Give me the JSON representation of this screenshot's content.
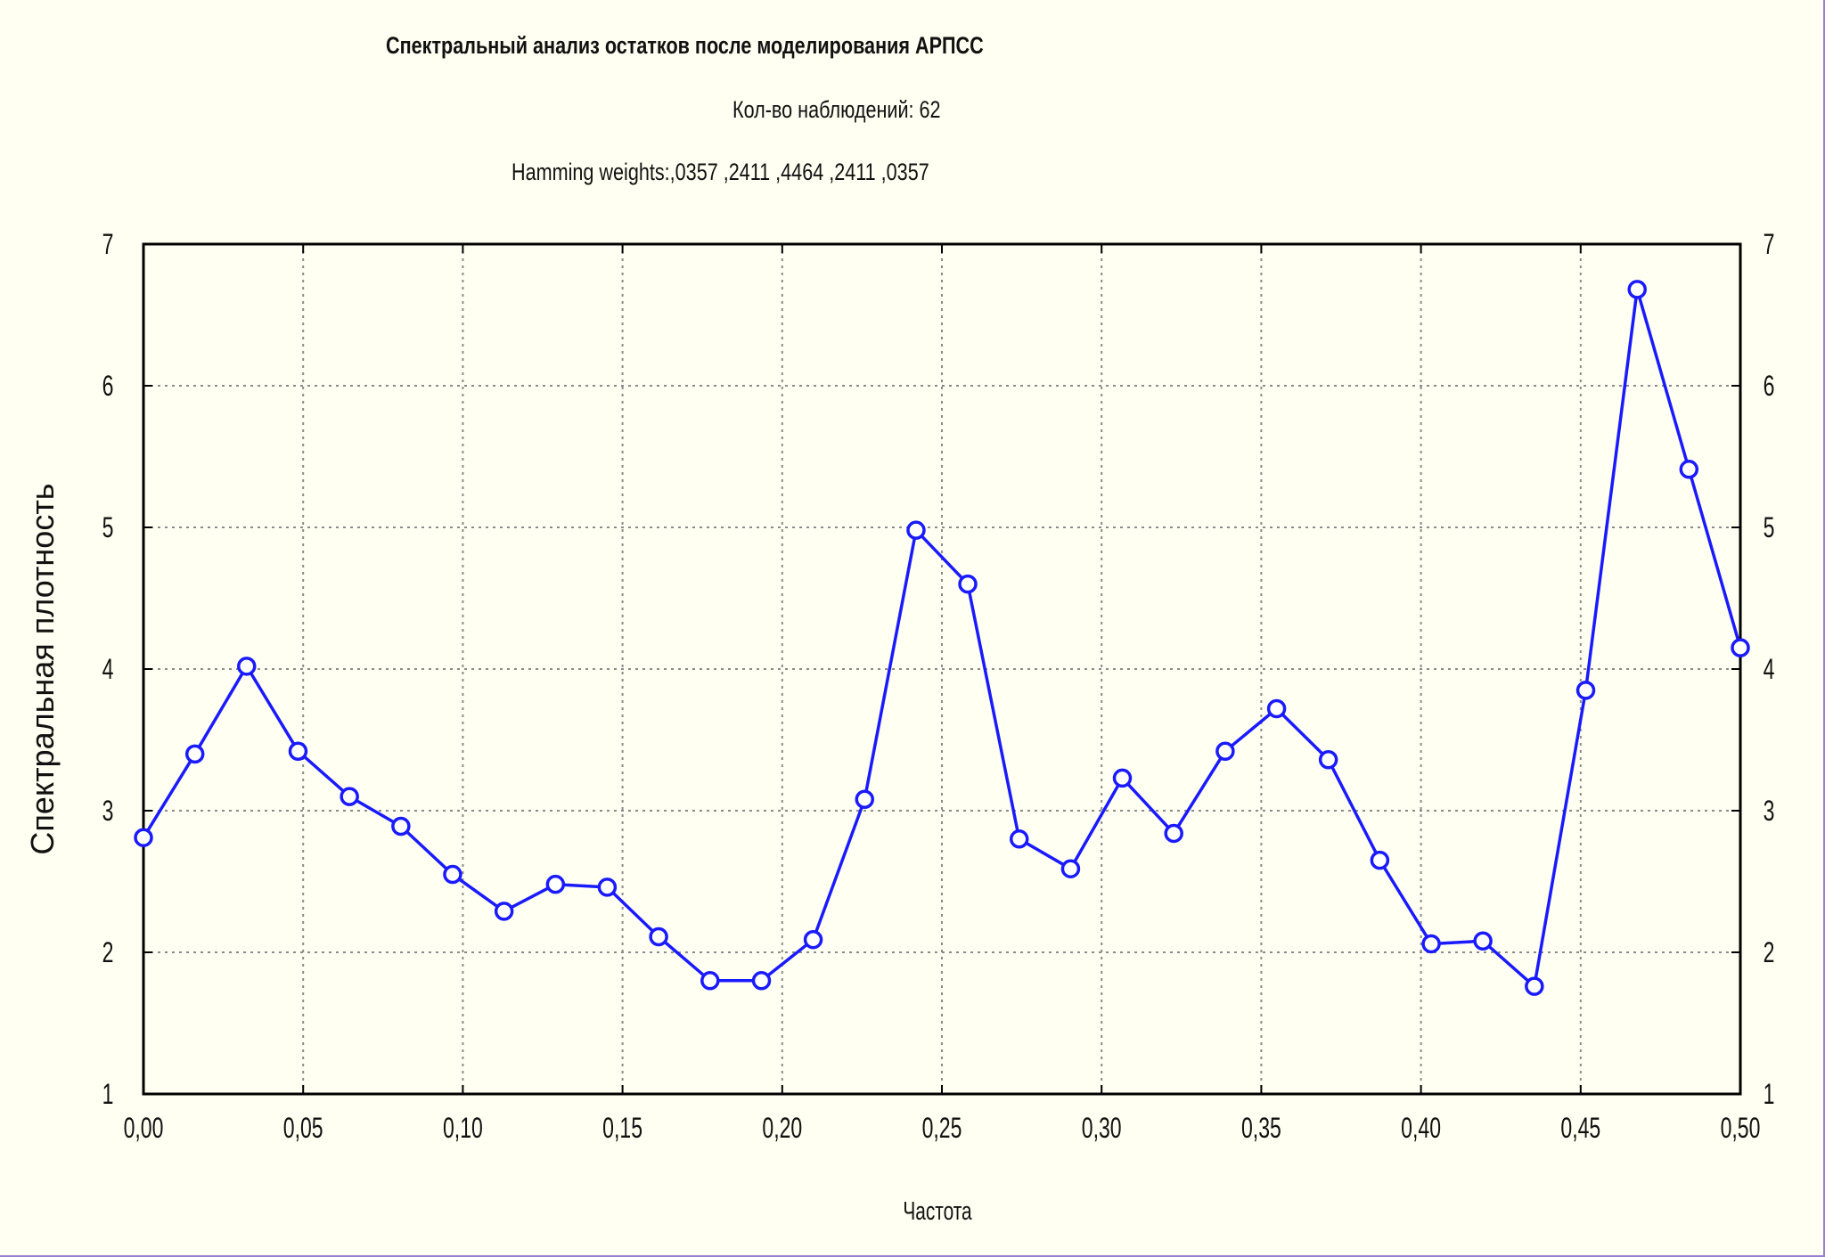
{
  "chart_data": {
    "type": "line",
    "title_lines": [
      "Спектральный анализ остатков после моделирования АРПСС",
      "Кол-во наблюдений: 62",
      "Hamming weights:,0357 ,2411 ,4464 ,2411 ,0357"
    ],
    "xlabel": "Частота",
    "ylabel": "Спектральная плотность",
    "xlim": [
      0,
      0.5
    ],
    "ylim": [
      1,
      7
    ],
    "x_ticks": [
      "0,00",
      "0,05",
      "0,10",
      "0,15",
      "0,20",
      "0,25",
      "0,30",
      "0,35",
      "0,40",
      "0,45",
      "0,50"
    ],
    "y_ticks": [
      "1",
      "2",
      "3",
      "4",
      "5",
      "6",
      "7"
    ],
    "grid": true,
    "series": [
      {
        "color": "#1a1aff",
        "x": [
          0.0,
          0.0161,
          0.0323,
          0.0484,
          0.0645,
          0.0806,
          0.0968,
          0.1129,
          0.129,
          0.1452,
          0.1613,
          0.1774,
          0.1935,
          0.2097,
          0.2258,
          0.2419,
          0.2581,
          0.2742,
          0.2903,
          0.3065,
          0.3226,
          0.3387,
          0.3548,
          0.371,
          0.3871,
          0.4032,
          0.4194,
          0.4355,
          0.4516,
          0.4677,
          0.4839,
          0.5
        ],
        "y": [
          2.81,
          3.4,
          4.02,
          3.42,
          3.1,
          2.89,
          2.55,
          2.29,
          2.48,
          2.46,
          2.11,
          1.8,
          1.8,
          2.09,
          3.08,
          4.98,
          4.6,
          2.8,
          2.59,
          3.23,
          2.84,
          3.42,
          3.72,
          3.36,
          2.65,
          2.06,
          2.08,
          1.76,
          3.85,
          6.68,
          5.41,
          4.15
        ]
      }
    ]
  }
}
